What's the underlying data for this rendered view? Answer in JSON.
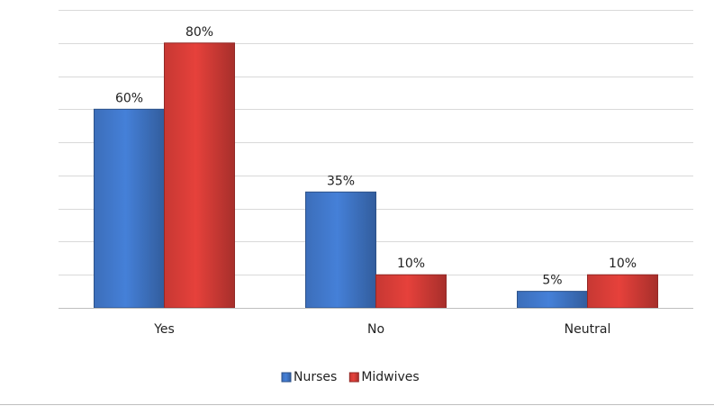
{
  "chart_data": {
    "type": "bar",
    "categories": [
      "Yes",
      "No",
      "Neutral"
    ],
    "series": [
      {
        "name": "Nurses",
        "color": "#3f74c4",
        "values": [
          60,
          35,
          5
        ],
        "value_labels": [
          "60%",
          "35%",
          "5%"
        ]
      },
      {
        "name": "Midwives",
        "color": "#d13b36",
        "values": [
          80,
          10,
          10
        ],
        "value_labels": [
          "80%",
          "10%",
          "10%"
        ]
      }
    ],
    "ylim": [
      0,
      90
    ],
    "yticks": [
      0,
      10,
      20,
      30,
      40,
      50,
      60,
      70,
      80,
      90
    ],
    "show_ytick_labels": false,
    "grid": true,
    "legend": "bottom"
  }
}
